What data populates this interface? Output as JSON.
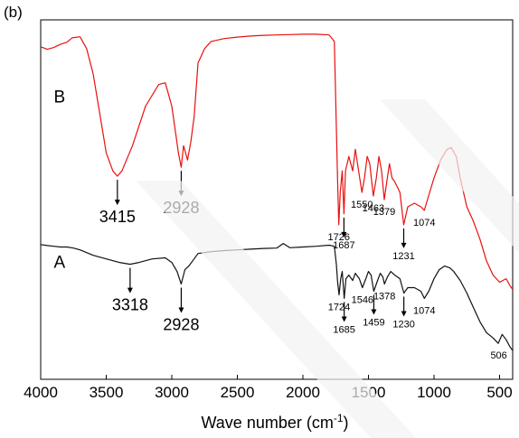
{
  "panel_label": "(b)",
  "chart_data": {
    "type": "line",
    "xlabel_text": "Wave number (cm",
    "xlabel_sup": "-1",
    "xlabel_close": ")",
    "ylabel": "",
    "x_reversed": true,
    "xlim": [
      4000,
      400
    ],
    "ylim": [
      0,
      100
    ],
    "grid": false,
    "xticks": [
      4000,
      3500,
      3000,
      2500,
      2000,
      1500,
      1000,
      500
    ],
    "series": [
      {
        "name": "B",
        "color": "#e8100e",
        "label_at": [
          3900,
          77
        ],
        "points": [
          [
            4000,
            92.5
          ],
          [
            3950,
            91.8
          ],
          [
            3900,
            92.3
          ],
          [
            3850,
            93.2
          ],
          [
            3800,
            93.8
          ],
          [
            3760,
            95.0
          ],
          [
            3700,
            95.3
          ],
          [
            3650,
            92.0
          ],
          [
            3600,
            85.0
          ],
          [
            3550,
            74.0
          ],
          [
            3500,
            63.0
          ],
          [
            3450,
            58.0
          ],
          [
            3415,
            56.5
          ],
          [
            3380,
            58.0
          ],
          [
            3300,
            65.0
          ],
          [
            3200,
            76.0
          ],
          [
            3100,
            82.0
          ],
          [
            3050,
            82.5
          ],
          [
            3000,
            76.0
          ],
          [
            2965,
            67.0
          ],
          [
            2950,
            63.0
          ],
          [
            2928,
            59.0
          ],
          [
            2910,
            65.0
          ],
          [
            2880,
            61.0
          ],
          [
            2855,
            66.0
          ],
          [
            2830,
            73.0
          ],
          [
            2800,
            88.0
          ],
          [
            2750,
            92.0
          ],
          [
            2700,
            94.0
          ],
          [
            2600,
            94.8
          ],
          [
            2500,
            95.2
          ],
          [
            2400,
            95.5
          ],
          [
            2300,
            95.7
          ],
          [
            2200,
            95.8
          ],
          [
            2100,
            95.9
          ],
          [
            2000,
            96.0
          ],
          [
            1900,
            96.0
          ],
          [
            1800,
            95.8
          ],
          [
            1760,
            94.0
          ],
          [
            1745,
            70.0
          ],
          [
            1735,
            55.0
          ],
          [
            1726,
            43.0
          ],
          [
            1715,
            52.0
          ],
          [
            1700,
            58.0
          ],
          [
            1687,
            46.0
          ],
          [
            1675,
            58.0
          ],
          [
            1650,
            62.0
          ],
          [
            1620,
            58.0
          ],
          [
            1600,
            64.0
          ],
          [
            1575,
            58.0
          ],
          [
            1550,
            52.0
          ],
          [
            1530,
            56.0
          ],
          [
            1510,
            62.0
          ],
          [
            1490,
            60.0
          ],
          [
            1463,
            51.0
          ],
          [
            1440,
            56.0
          ],
          [
            1420,
            62.0
          ],
          [
            1400,
            58.0
          ],
          [
            1379,
            50.0
          ],
          [
            1360,
            55.0
          ],
          [
            1340,
            60.0
          ],
          [
            1320,
            56.0
          ],
          [
            1300,
            55.0
          ],
          [
            1260,
            52.0
          ],
          [
            1231,
            43.0
          ],
          [
            1200,
            48.0
          ],
          [
            1150,
            49.0
          ],
          [
            1100,
            48.0
          ],
          [
            1074,
            47.0
          ],
          [
            1050,
            50.0
          ],
          [
            1000,
            56.0
          ],
          [
            950,
            61.0
          ],
          [
            900,
            64.0
          ],
          [
            870,
            64.5
          ],
          [
            830,
            62.0
          ],
          [
            800,
            56.0
          ],
          [
            750,
            48.0
          ],
          [
            700,
            44.0
          ],
          [
            650,
            39.0
          ],
          [
            600,
            33.0
          ],
          [
            550,
            29.0
          ],
          [
            500,
            27.0
          ],
          [
            450,
            28.0
          ],
          [
            420,
            26.0
          ],
          [
            400,
            25.0
          ]
        ]
      },
      {
        "name": "A",
        "color": "#111111",
        "label_at": [
          3900,
          31
        ],
        "points": [
          [
            4000,
            37.5
          ],
          [
            3950,
            37.2
          ],
          [
            3900,
            37.0
          ],
          [
            3850,
            36.8
          ],
          [
            3800,
            36.8
          ],
          [
            3750,
            36.5
          ],
          [
            3700,
            36.0
          ],
          [
            3600,
            34.5
          ],
          [
            3500,
            33.5
          ],
          [
            3400,
            32.5
          ],
          [
            3318,
            32.0
          ],
          [
            3250,
            32.5
          ],
          [
            3150,
            33.5
          ],
          [
            3050,
            33.8
          ],
          [
            3000,
            32.5
          ],
          [
            2960,
            30.0
          ],
          [
            2928,
            26.5
          ],
          [
            2900,
            30.5
          ],
          [
            2870,
            31.5
          ],
          [
            2840,
            33.0
          ],
          [
            2800,
            35.0
          ],
          [
            2700,
            35.5
          ],
          [
            2600,
            35.8
          ],
          [
            2500,
            36.0
          ],
          [
            2400,
            36.2
          ],
          [
            2300,
            36.4
          ],
          [
            2200,
            36.5
          ],
          [
            2150,
            37.8
          ],
          [
            2100,
            36.6
          ],
          [
            2000,
            36.8
          ],
          [
            1900,
            37.0
          ],
          [
            1800,
            37.3
          ],
          [
            1760,
            37.0
          ],
          [
            1745,
            32.0
          ],
          [
            1735,
            27.0
          ],
          [
            1724,
            23.5
          ],
          [
            1712,
            28.0
          ],
          [
            1700,
            30.0
          ],
          [
            1685,
            22.5
          ],
          [
            1672,
            28.0
          ],
          [
            1650,
            29.0
          ],
          [
            1620,
            27.5
          ],
          [
            1600,
            29.5
          ],
          [
            1570,
            28.0
          ],
          [
            1546,
            25.5
          ],
          [
            1520,
            28.0
          ],
          [
            1500,
            30.0
          ],
          [
            1480,
            29.0
          ],
          [
            1459,
            24.5
          ],
          [
            1435,
            27.0
          ],
          [
            1410,
            29.5
          ],
          [
            1390,
            28.5
          ],
          [
            1378,
            26.5
          ],
          [
            1355,
            28.5
          ],
          [
            1330,
            30.0
          ],
          [
            1300,
            29.0
          ],
          [
            1260,
            28.0
          ],
          [
            1230,
            24.0
          ],
          [
            1200,
            25.5
          ],
          [
            1150,
            25.5
          ],
          [
            1100,
            24.5
          ],
          [
            1074,
            22.5
          ],
          [
            1040,
            24.5
          ],
          [
            1000,
            28.0
          ],
          [
            960,
            30.5
          ],
          [
            920,
            31.5
          ],
          [
            880,
            31.0
          ],
          [
            850,
            30.0
          ],
          [
            800,
            27.5
          ],
          [
            750,
            24.0
          ],
          [
            700,
            20.0
          ],
          [
            650,
            16.0
          ],
          [
            600,
            13.0
          ],
          [
            550,
            11.5
          ],
          [
            510,
            10.0
          ],
          [
            480,
            12.5
          ],
          [
            450,
            11.0
          ],
          [
            420,
            9.0
          ],
          [
            400,
            8.0
          ]
        ]
      }
    ],
    "annotations": [
      {
        "text": "3415",
        "x": 3415,
        "y": 56.5,
        "arrow": true,
        "series": "B"
      },
      {
        "text": "2928",
        "x": 2928,
        "y": 59.0,
        "arrow": true,
        "series": "B"
      },
      {
        "text": "1726",
        "x": 1726,
        "y": 43.0,
        "arrow": false,
        "series": "B"
      },
      {
        "text": "1687",
        "x": 1687,
        "y": 46.0,
        "arrow": true,
        "series": "B"
      },
      {
        "text": "1550",
        "x": 1550,
        "y": 52.0,
        "arrow": false,
        "series": "B"
      },
      {
        "text": "1463",
        "x": 1463,
        "y": 51.0,
        "arrow": false,
        "series": "B"
      },
      {
        "text": "1379",
        "x": 1379,
        "y": 50.0,
        "arrow": false,
        "series": "B"
      },
      {
        "text": "1231",
        "x": 1231,
        "y": 43.0,
        "arrow": true,
        "series": "B"
      },
      {
        "text": "1074",
        "x": 1074,
        "y": 47.0,
        "arrow": false,
        "series": "B"
      },
      {
        "text": "3318",
        "x": 3318,
        "y": 32.0,
        "arrow": true,
        "series": "A"
      },
      {
        "text": "2928",
        "x": 2928,
        "y": 26.5,
        "arrow": true,
        "series": "A"
      },
      {
        "text": "1724",
        "x": 1724,
        "y": 23.5,
        "arrow": false,
        "series": "A"
      },
      {
        "text": "1685",
        "x": 1685,
        "y": 22.5,
        "arrow": true,
        "series": "A"
      },
      {
        "text": "1546",
        "x": 1546,
        "y": 25.5,
        "arrow": false,
        "series": "A"
      },
      {
        "text": "1459",
        "x": 1459,
        "y": 24.5,
        "arrow": true,
        "series": "A"
      },
      {
        "text": "1378",
        "x": 1378,
        "y": 26.5,
        "arrow": false,
        "series": "A"
      },
      {
        "text": "1230",
        "x": 1230,
        "y": 24.0,
        "arrow": true,
        "series": "A"
      },
      {
        "text": "1074",
        "x": 1074,
        "y": 22.5,
        "arrow": false,
        "series": "A"
      },
      {
        "text": "506",
        "x": 506,
        "y": 10.0,
        "arrow": false,
        "series": "A"
      }
    ]
  }
}
